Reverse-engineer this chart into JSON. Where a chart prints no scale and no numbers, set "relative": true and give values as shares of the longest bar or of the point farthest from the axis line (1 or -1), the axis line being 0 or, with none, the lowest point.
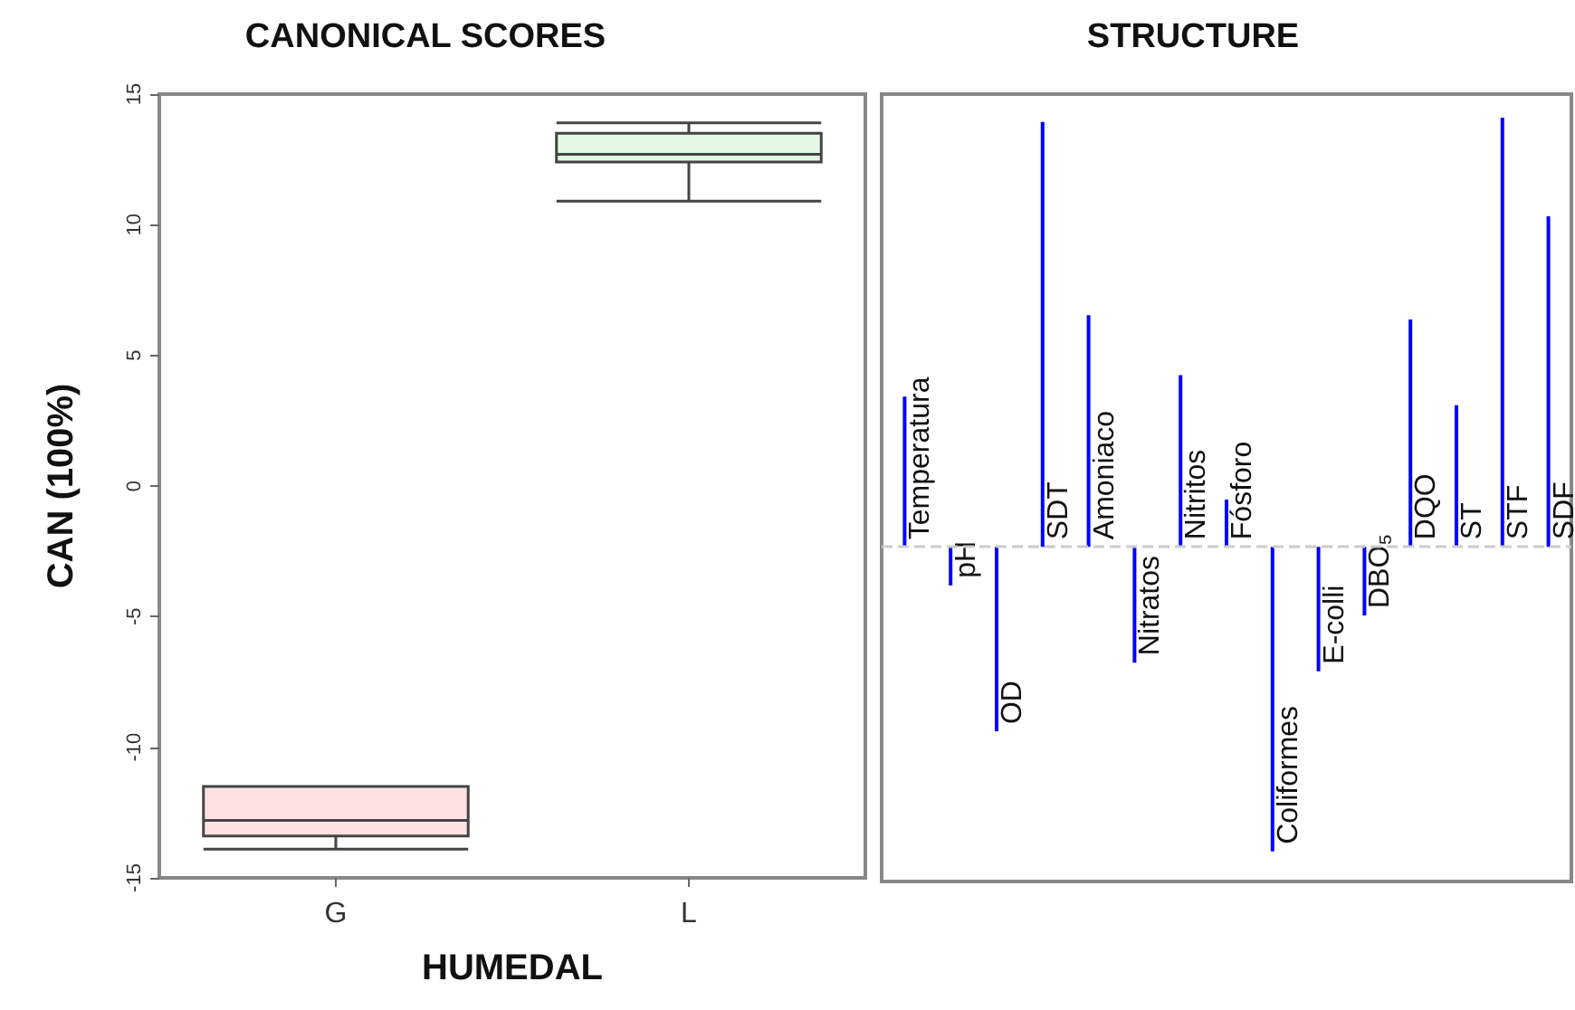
{
  "chart_data": [
    {
      "type": "box",
      "title": "CANONICAL SCORES",
      "xlabel": "HUMEDAL",
      "ylabel": "CAN (100%)",
      "categories": [
        "G",
        "L"
      ],
      "boxes": [
        {
          "low": -13.9,
          "q1": -13.4,
          "median": -12.8,
          "q3": -11.5,
          "high": -11.5
        },
        {
          "low": 10.9,
          "q1": 12.4,
          "median": 12.7,
          "q3": 13.5,
          "high": 13.9
        }
      ],
      "colors": [
        "#fde2e2",
        "#e2f8e2"
      ],
      "ylim": [
        -15,
        15
      ],
      "yticks": [
        -15,
        -10,
        -5,
        0,
        5,
        10,
        15
      ]
    },
    {
      "type": "bar",
      "title": "STRUCTURE",
      "relative": true,
      "color": "#0000ff",
      "categories": [
        "Temperatura",
        "pH",
        "OD",
        "SDT",
        "Amoniaco",
        "Nitratos",
        "Nitritos",
        "Fósforo",
        "Coliformes",
        "E-colli",
        "DBO₅",
        "DQO",
        "ST",
        "STF",
        "SDF"
      ],
      "values": [
        0.35,
        -0.09,
        -0.43,
        0.99,
        0.54,
        -0.27,
        0.4,
        0.11,
        -0.71,
        -0.29,
        -0.16,
        0.53,
        0.33,
        1,
        0.77
      ],
      "ref_lines": [
        {
          "axis": "y",
          "value": 0,
          "color": "#cccccc",
          "line_style": "dashed"
        }
      ]
    }
  ]
}
